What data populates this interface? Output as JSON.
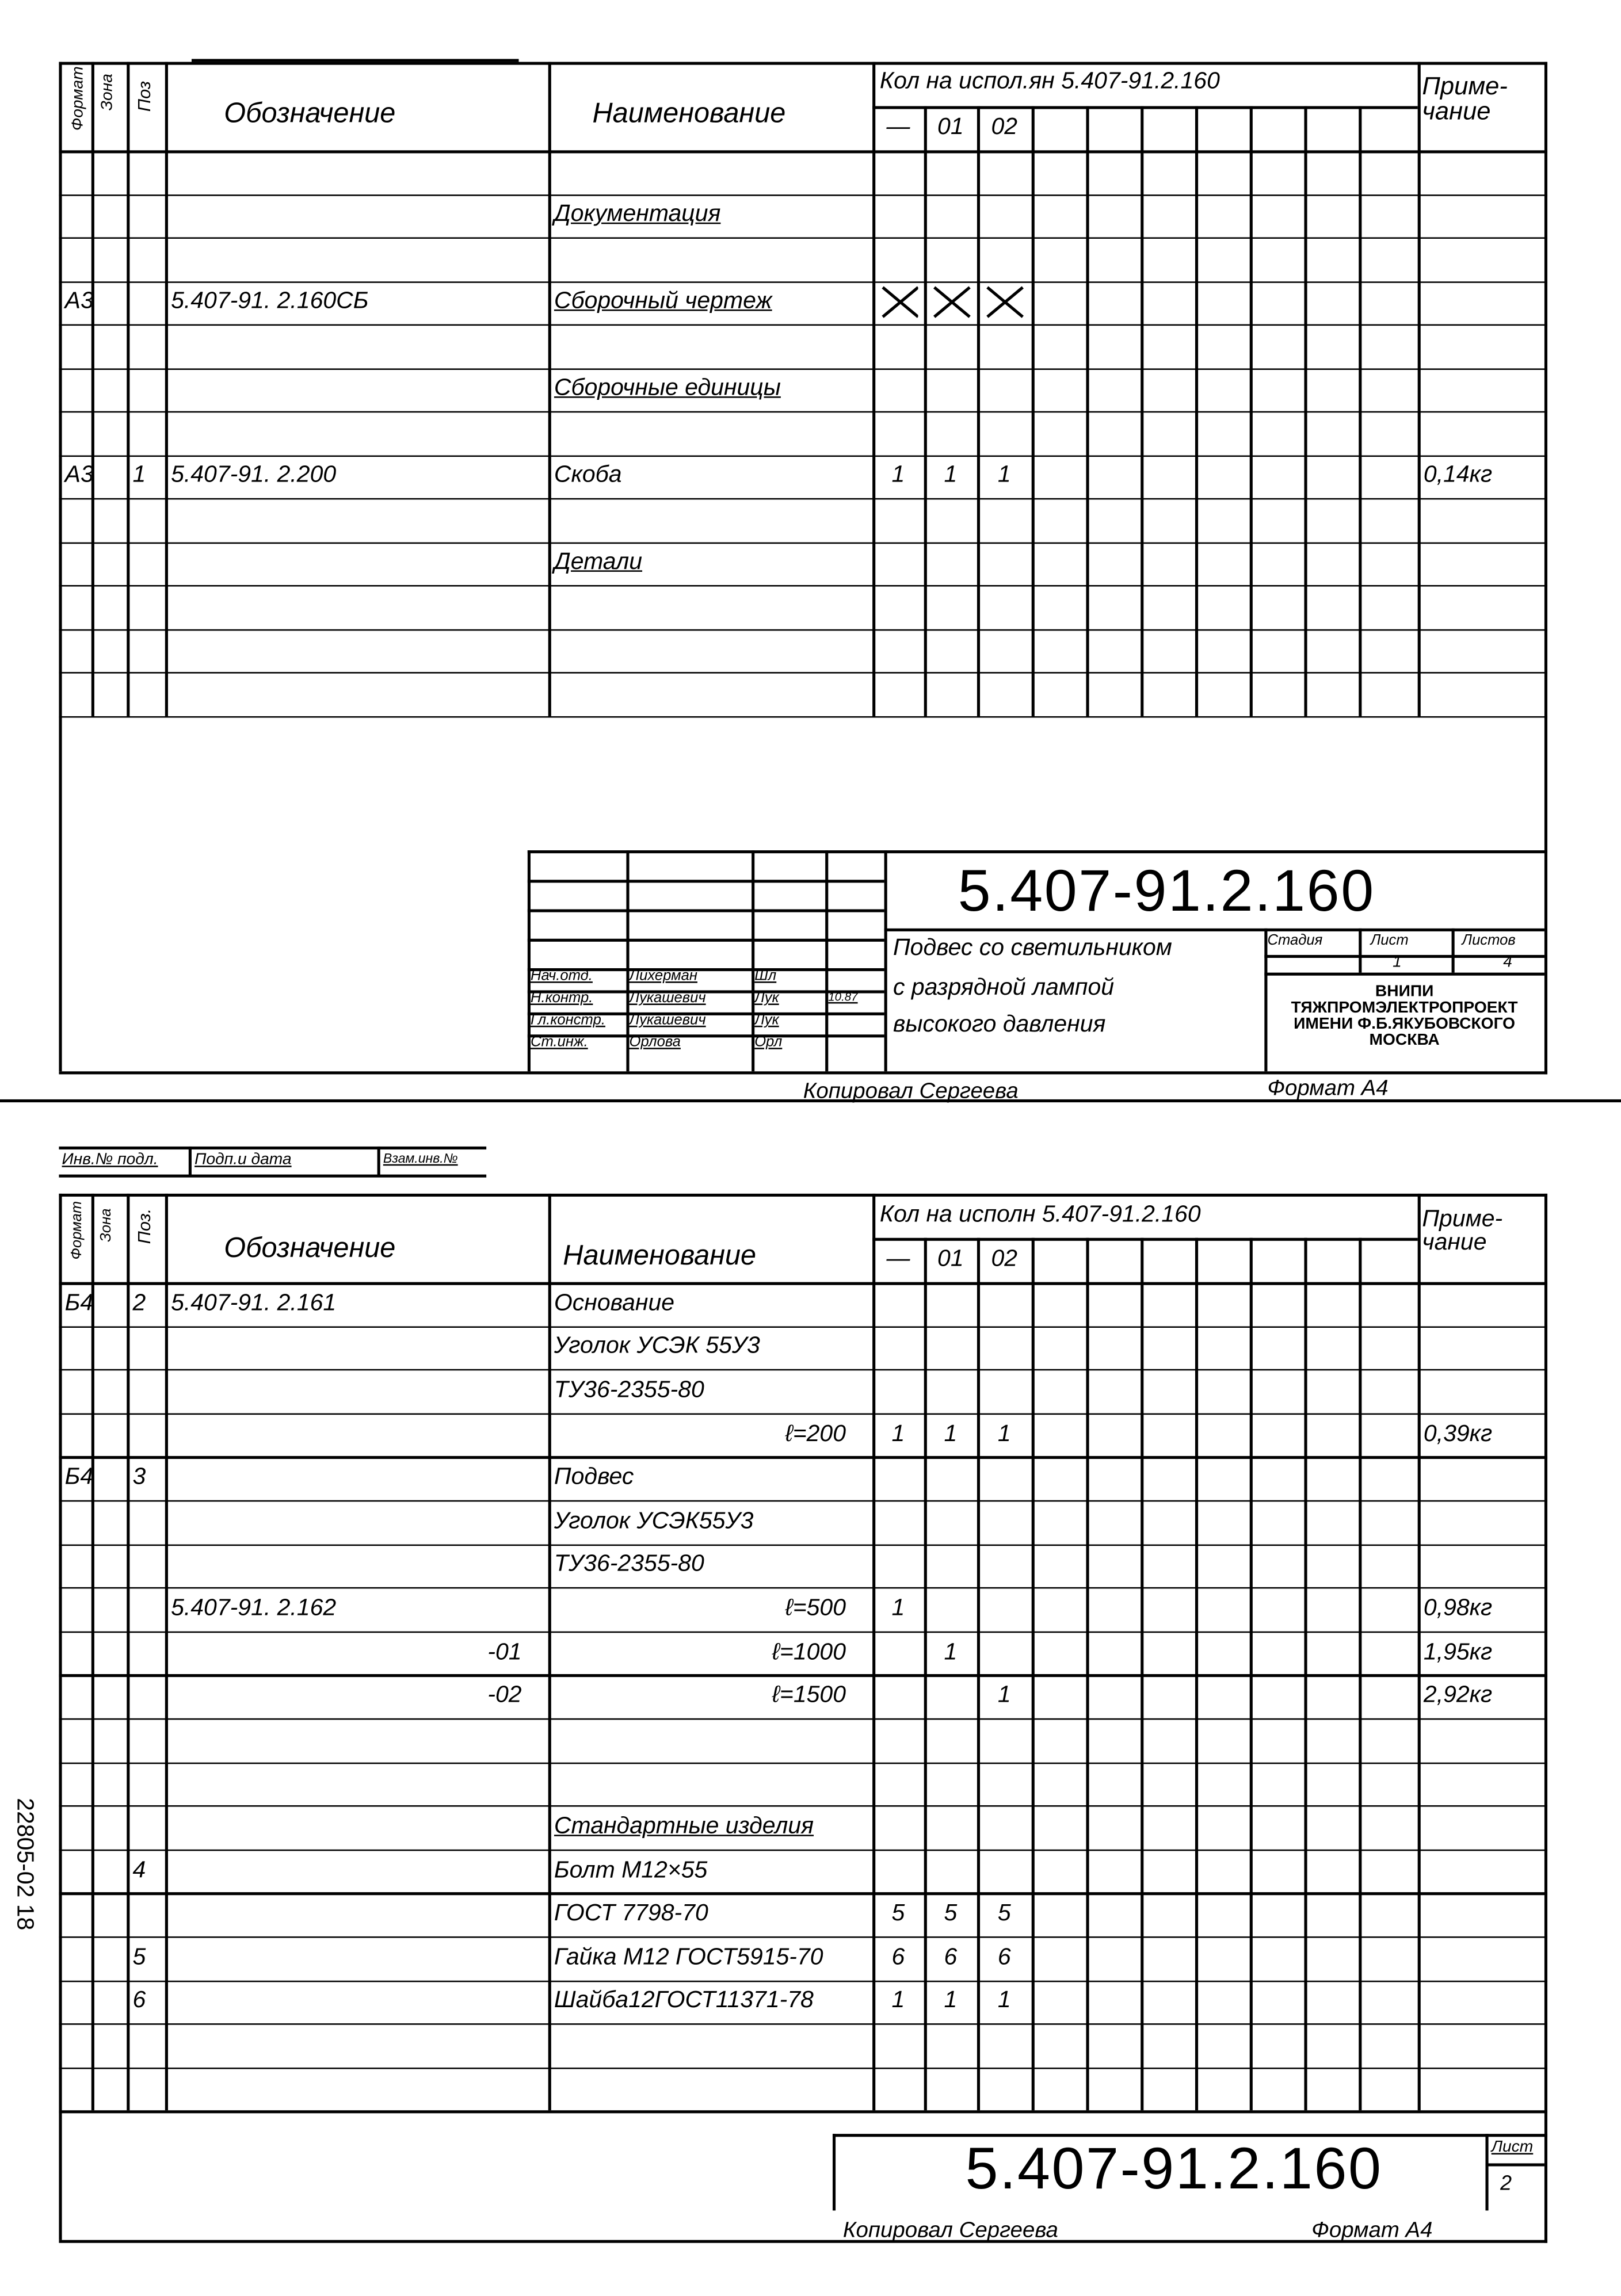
{
  "header": {
    "format": "Формат",
    "zone": "Зона",
    "pos": "Поз",
    "pos_bottom": "Поз.",
    "designation": "Обозначение",
    "name": "Наименование",
    "qty_title_top": "Кол на испол.ян 5.407-91.2.160",
    "qty_title_bottom": "Кол на исполн 5.407-91.2.160",
    "qty_cols": [
      "—",
      "01",
      "02"
    ],
    "note": "Приме-чание"
  },
  "sheet1": {
    "rows": [
      [
        "",
        "",
        "",
        "",
        "",
        "",
        "",
        "",
        ""
      ],
      [
        "",
        "",
        "",
        "",
        "Документация",
        "",
        "",
        "",
        ""
      ],
      [
        "",
        "",
        "",
        "",
        "",
        "",
        "",
        "",
        ""
      ],
      [
        "А3",
        "",
        "",
        "5.407-91. 2.160СБ",
        "Сборочный чертеж",
        "cross-icon",
        "cross-icon",
        "cross-icon",
        ""
      ],
      [
        "",
        "",
        "",
        "",
        "",
        "",
        "",
        "",
        ""
      ],
      [
        "",
        "",
        "",
        "",
        "Сборочные единицы",
        "",
        "",
        "",
        ""
      ],
      [
        "",
        "",
        "",
        "",
        "",
        "",
        "",
        "",
        ""
      ],
      [
        "А3",
        "",
        "1",
        "5.407-91. 2.200",
        "Скоба",
        "1",
        "1",
        "1",
        "0,14кг"
      ],
      [
        "",
        "",
        "",
        "",
        "",
        "",
        "",
        "",
        ""
      ],
      [
        "",
        "",
        "",
        "",
        "Детали",
        "",
        "",
        "",
        ""
      ],
      [
        "",
        "",
        "",
        "",
        "",
        "",
        "",
        "",
        ""
      ],
      [
        "",
        "",
        "",
        "",
        "",
        "",
        "",
        "",
        ""
      ],
      [
        "",
        "",
        "",
        "",
        "",
        "",
        "",
        "",
        ""
      ]
    ],
    "title_block": {
      "doc_number": "5.407-91.2.160",
      "title": [
        "Подвес со светильником",
        "с разрядной лампой",
        "высокого давления"
      ],
      "stage_label": "Стадия",
      "sheet_label": "Лист",
      "sheets_label": "Листов",
      "sheet": "1",
      "sheets": "4",
      "org": [
        "ВНИПИ",
        "ТЯЖПРОМЭЛЕКТРОПРОЕКТ",
        "ИМЕНИ Ф.Б.ЯКУБОВСКОГО",
        "МОСКВА"
      ],
      "signers": [
        {
          "role": "Нач.отд.",
          "name": "Лихерман",
          "signature": "Шл",
          "date": ""
        },
        {
          "role": "Н.контр.",
          "name": "Лукашевич",
          "signature": "Лук",
          "date": "10.87"
        },
        {
          "role": "Гл.констр.",
          "name": "Лукашевич",
          "signature": "Лук",
          "date": ""
        },
        {
          "role": "Ст.инж.",
          "name": "Орлова",
          "signature": "Орл",
          "date": ""
        }
      ]
    },
    "copied_by": "Копировал Сергеева",
    "format": "Формат А4"
  },
  "stamp": [
    "Инв.№ подл.",
    "Подп.и дата",
    "Взам.инв.№"
  ],
  "sheet2": {
    "rows": [
      [
        "Б4",
        "",
        "2",
        "5.407-91. 2.161",
        "Основание",
        "",
        "",
        "",
        ""
      ],
      [
        "",
        "",
        "",
        "",
        "Уголок УСЭК 55У3",
        "",
        "",
        "",
        ""
      ],
      [
        "",
        "",
        "",
        "",
        "ТУ36-2355-80",
        "",
        "",
        "",
        ""
      ],
      [
        "",
        "",
        "",
        "",
        "ℓ=200",
        "1",
        "1",
        "1",
        "0,39кг"
      ],
      [
        "Б4",
        "",
        "3",
        "",
        "Подвес",
        "",
        "",
        "",
        ""
      ],
      [
        "",
        "",
        "",
        "",
        "Уголок УСЭК55У3",
        "",
        "",
        "",
        ""
      ],
      [
        "",
        "",
        "",
        "",
        "ТУ36-2355-80",
        "",
        "",
        "",
        ""
      ],
      [
        "",
        "",
        "",
        "5.407-91. 2.162",
        "ℓ=500",
        "1",
        "",
        "",
        "0,98кг"
      ],
      [
        "",
        "",
        "",
        "-01",
        "ℓ=1000",
        "",
        "1",
        "",
        "1,95кг"
      ],
      [
        "",
        "",
        "",
        "-02",
        "ℓ=1500",
        "",
        "",
        "1",
        "2,92кг"
      ],
      [
        "",
        "",
        "",
        "",
        "",
        "",
        "",
        "",
        ""
      ],
      [
        "",
        "",
        "",
        "",
        "",
        "",
        "",
        "",
        ""
      ],
      [
        "",
        "",
        "",
        "",
        "Стандартные изделия",
        "",
        "",
        "",
        ""
      ],
      [
        "",
        "",
        "4",
        "",
        "Болт М12×55",
        "",
        "",
        "",
        ""
      ],
      [
        "",
        "",
        "",
        "",
        "ГОСТ 7798-70",
        "5",
        "5",
        "5",
        ""
      ],
      [
        "",
        "",
        "5",
        "",
        "Гайка М12 ГОСТ5915-70",
        "6",
        "6",
        "6",
        ""
      ],
      [
        "",
        "",
        "6",
        "",
        "Шайба12ГОСТ11371-78",
        "1",
        "1",
        "1",
        ""
      ],
      [
        "",
        "",
        "",
        "",
        "",
        "",
        "",
        "",
        ""
      ],
      [
        "",
        "",
        "",
        "",
        "",
        "",
        "",
        "",
        ""
      ]
    ],
    "doc_number": "5.407-91.2.160",
    "sheet_label": "Лист",
    "sheet": "2",
    "copied_by": "Копировал Сергеева",
    "format": "Формат А4"
  },
  "margin_note": "22805-02   18"
}
